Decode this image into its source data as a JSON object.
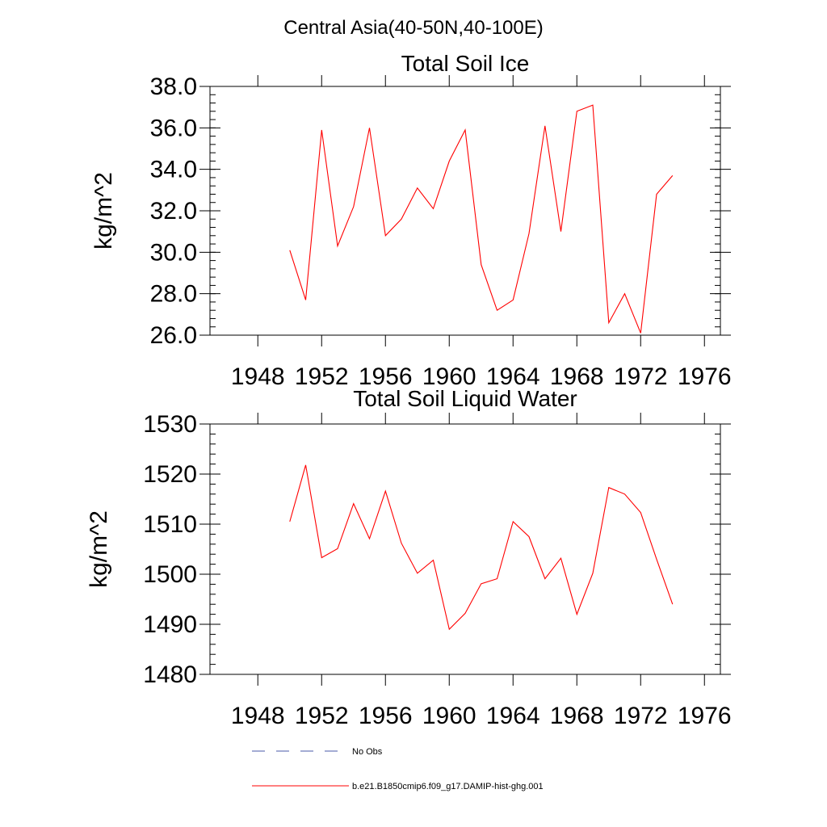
{
  "figure": {
    "title": "Central Asia(40-50N,40-100E)"
  },
  "legend": {
    "items": [
      {
        "label": "No Obs",
        "color": "#4a5aa8",
        "style": "dashed"
      },
      {
        "label": "b.e21.B1850cmip6.f09_g17.DAMIP-hist-ghg.001",
        "color": "#ff0000",
        "style": "solid"
      }
    ]
  },
  "chart_data": [
    {
      "type": "line",
      "title": "Total Soil Ice",
      "ylabel": "kg/m^2",
      "xlabel": "",
      "xlim": [
        1945,
        1977
      ],
      "ylim": [
        26,
        38
      ],
      "xticks": [
        1948,
        1952,
        1956,
        1960,
        1964,
        1968,
        1972,
        1976
      ],
      "xtick_labels": [
        "1948",
        "1952",
        "1956",
        "1960",
        "1964",
        "1968",
        "1972",
        "1976"
      ],
      "yticks": [
        26,
        28,
        30,
        32,
        34,
        36,
        38
      ],
      "ytick_labels": [
        "26.0",
        "28.0",
        "30.0",
        "32.0",
        "34.0",
        "36.0",
        "38.0"
      ],
      "grid": false,
      "series": [
        {
          "name": "b.e21.B1850cmip6.f09_g17.DAMIP-hist-ghg.001",
          "color": "#ff0000",
          "x": [
            1950,
            1951,
            1952,
            1953,
            1954,
            1955,
            1956,
            1957,
            1958,
            1959,
            1960,
            1961,
            1962,
            1963,
            1964,
            1965,
            1966,
            1967,
            1968,
            1969,
            1970,
            1971,
            1972,
            1973,
            1974
          ],
          "y": [
            30.1,
            27.7,
            35.9,
            30.3,
            32.2,
            36.0,
            30.8,
            31.6,
            33.1,
            32.1,
            34.4,
            35.9,
            29.4,
            27.2,
            27.7,
            30.9,
            36.1,
            31.0,
            36.8,
            37.1,
            26.6,
            28.0,
            26.1,
            32.8,
            33.7
          ]
        }
      ]
    },
    {
      "type": "line",
      "title": "Total Soil Liquid Water",
      "ylabel": "kg/m^2",
      "xlabel": "",
      "xlim": [
        1945,
        1977
      ],
      "ylim": [
        1480,
        1530
      ],
      "xticks": [
        1948,
        1952,
        1956,
        1960,
        1964,
        1968,
        1972,
        1976
      ],
      "xtick_labels": [
        "1948",
        "1952",
        "1956",
        "1960",
        "1964",
        "1968",
        "1972",
        "1976"
      ],
      "yticks": [
        1480,
        1490,
        1500,
        1510,
        1520,
        1530
      ],
      "ytick_labels": [
        "1480",
        "1490",
        "1500",
        "1510",
        "1520",
        "1530"
      ],
      "grid": false,
      "series": [
        {
          "name": "b.e21.B1850cmip6.f09_g17.DAMIP-hist-ghg.001",
          "color": "#ff0000",
          "x": [
            1950,
            1951,
            1952,
            1953,
            1954,
            1955,
            1956,
            1957,
            1958,
            1959,
            1960,
            1961,
            1962,
            1963,
            1964,
            1965,
            1966,
            1967,
            1968,
            1969,
            1970,
            1971,
            1972,
            1973,
            1974
          ],
          "y": [
            1510.5,
            1521.8,
            1503.3,
            1505.1,
            1514.1,
            1507.1,
            1516.6,
            1506.2,
            1500.2,
            1502.8,
            1489.0,
            1492.2,
            1498.1,
            1499.1,
            1510.5,
            1507.5,
            1499.1,
            1503.2,
            1492.0,
            1500.2,
            1517.3,
            1516.0,
            1512.3,
            1503.0,
            1494.0
          ]
        }
      ]
    }
  ]
}
